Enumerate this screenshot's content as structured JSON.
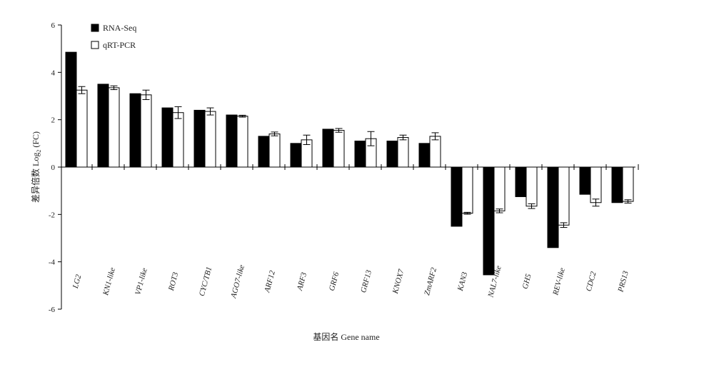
{
  "chart_data": {
    "type": "bar",
    "categories": [
      "LG2",
      "KN1-like",
      "VP1-like",
      "ROT3",
      "CYC/TB1",
      "AGO7-like",
      "ARF12",
      "ARF3",
      "GRF6",
      "GRF13",
      "KNOX7",
      "ZmARF2",
      "KAN3",
      "NAL7-like",
      "GH5",
      "REV-like",
      "CDC2",
      "PRS13"
    ],
    "series": [
      {
        "name": "RNA-Seq",
        "values": [
          4.85,
          3.5,
          3.1,
          2.5,
          2.4,
          2.2,
          1.3,
          1.0,
          1.6,
          1.1,
          1.1,
          1.0,
          -2.5,
          -4.55,
          -1.25,
          -3.4,
          -1.15,
          -1.5
        ]
      },
      {
        "name": "qRT-PCR",
        "values": [
          3.25,
          3.35,
          3.05,
          2.3,
          2.35,
          2.15,
          1.4,
          1.15,
          1.55,
          1.2,
          1.25,
          1.3,
          -1.95,
          -1.85,
          -1.65,
          -2.45,
          -1.5,
          -1.45
        ],
        "errors": [
          0.15,
          0.08,
          0.2,
          0.25,
          0.15,
          0.04,
          0.08,
          0.2,
          0.08,
          0.3,
          0.1,
          0.15,
          0.04,
          0.08,
          0.1,
          0.1,
          0.15,
          0.07
        ]
      }
    ],
    "ylabel_cn": "差异倍数",
    "ylabel_en": "Log",
    "ylabel_sub": "2",
    "ylabel_suffix": " (FC)",
    "xlabel": "基因名 Gene name",
    "ylim": [
      -6,
      6
    ],
    "yticks": [
      6,
      4,
      2,
      0,
      -2,
      -4,
      -6
    ],
    "legend_position": "top-left",
    "colors": {
      "rna": "#000000",
      "qrt": "#ffffff",
      "stroke": "#000000"
    },
    "grid": false
  }
}
